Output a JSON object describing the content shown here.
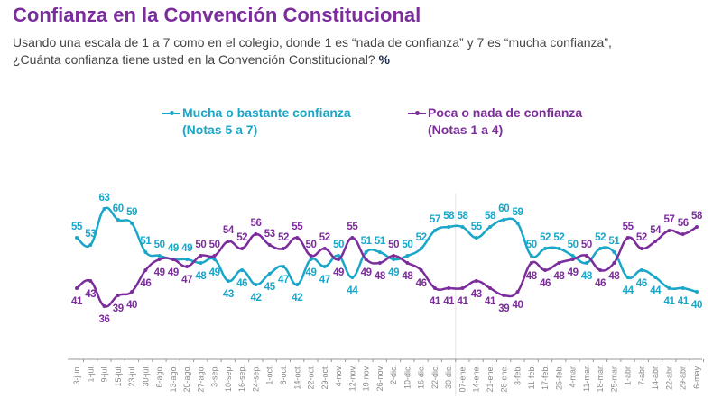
{
  "chart_data": {
    "type": "line",
    "title": "Confianza en la Convención Constitucional",
    "subtitle_line1": "Usando una escala de 1 a 7 como en el colegio, donde 1 es “nada de confianza” y 7 es “mucha confianza”,",
    "subtitle_line2": "¿Cuánta confianza tiene usted en la Convención Constitucional?",
    "unit_label": "%",
    "xlabel": "",
    "ylabel": "",
    "ylim": [
      30,
      70
    ],
    "grid": false,
    "legend_placement": "top",
    "categories": [
      "3-jun.",
      "1-jul.",
      "9-jul.",
      "15-jul.",
      "23-jul.",
      "30-jul.",
      "6-ago.",
      "13-ago.",
      "20-ago.",
      "27-ago.",
      "3-sep.",
      "10-sep.",
      "16-sep.",
      "24-sep.",
      "1-oct.",
      "8-oct.",
      "14-oct.",
      "22-oct.",
      "29-oct.",
      "4-nov.",
      "12-nov.",
      "19-nov.",
      "26-nov.",
      "2-dic.",
      "10-dic.",
      "16-dic.",
      "22-dic.",
      "30-dic.",
      "07-ene.",
      "14-ene.",
      "21-ene.",
      "28-ene.",
      "3-feb.",
      "11-feb.",
      "17-feb.",
      "25-feb.",
      "4-mar.",
      "11-mar.",
      "18-mar.",
      "25-mar.",
      "1-abr.",
      "7-abr.",
      "14-abr.",
      "22-abr.",
      "29-abr.",
      "6-may."
    ],
    "series": [
      {
        "name": "Mucha o bastante confianza",
        "name_line2": "(Notas 5 a 7)",
        "color": "#1aa6c8",
        "values": [
          55,
          53,
          63,
          60,
          59,
          51,
          50,
          49,
          49,
          48,
          49,
          43,
          46,
          42,
          45,
          47,
          42,
          49,
          47,
          50,
          44,
          51,
          51,
          49,
          50,
          52,
          57,
          58,
          58,
          55,
          58,
          60,
          59,
          50,
          52,
          52,
          50,
          48,
          52,
          51,
          44,
          46,
          44,
          41,
          41,
          40
        ]
      },
      {
        "name": "Poca o nada de confianza",
        "name_line2": "(Notas 1 a 4)",
        "color": "#7b2d9b",
        "values": [
          41,
          43,
          36,
          39,
          40,
          46,
          49,
          49,
          47,
          50,
          50,
          54,
          52,
          56,
          53,
          52,
          55,
          50,
          52,
          49,
          55,
          49,
          48,
          50,
          48,
          46,
          41,
          41,
          41,
          43,
          41,
          39,
          40,
          48,
          46,
          48,
          49,
          50,
          46,
          48,
          55,
          52,
          54,
          57,
          56,
          58
        ]
      }
    ]
  }
}
